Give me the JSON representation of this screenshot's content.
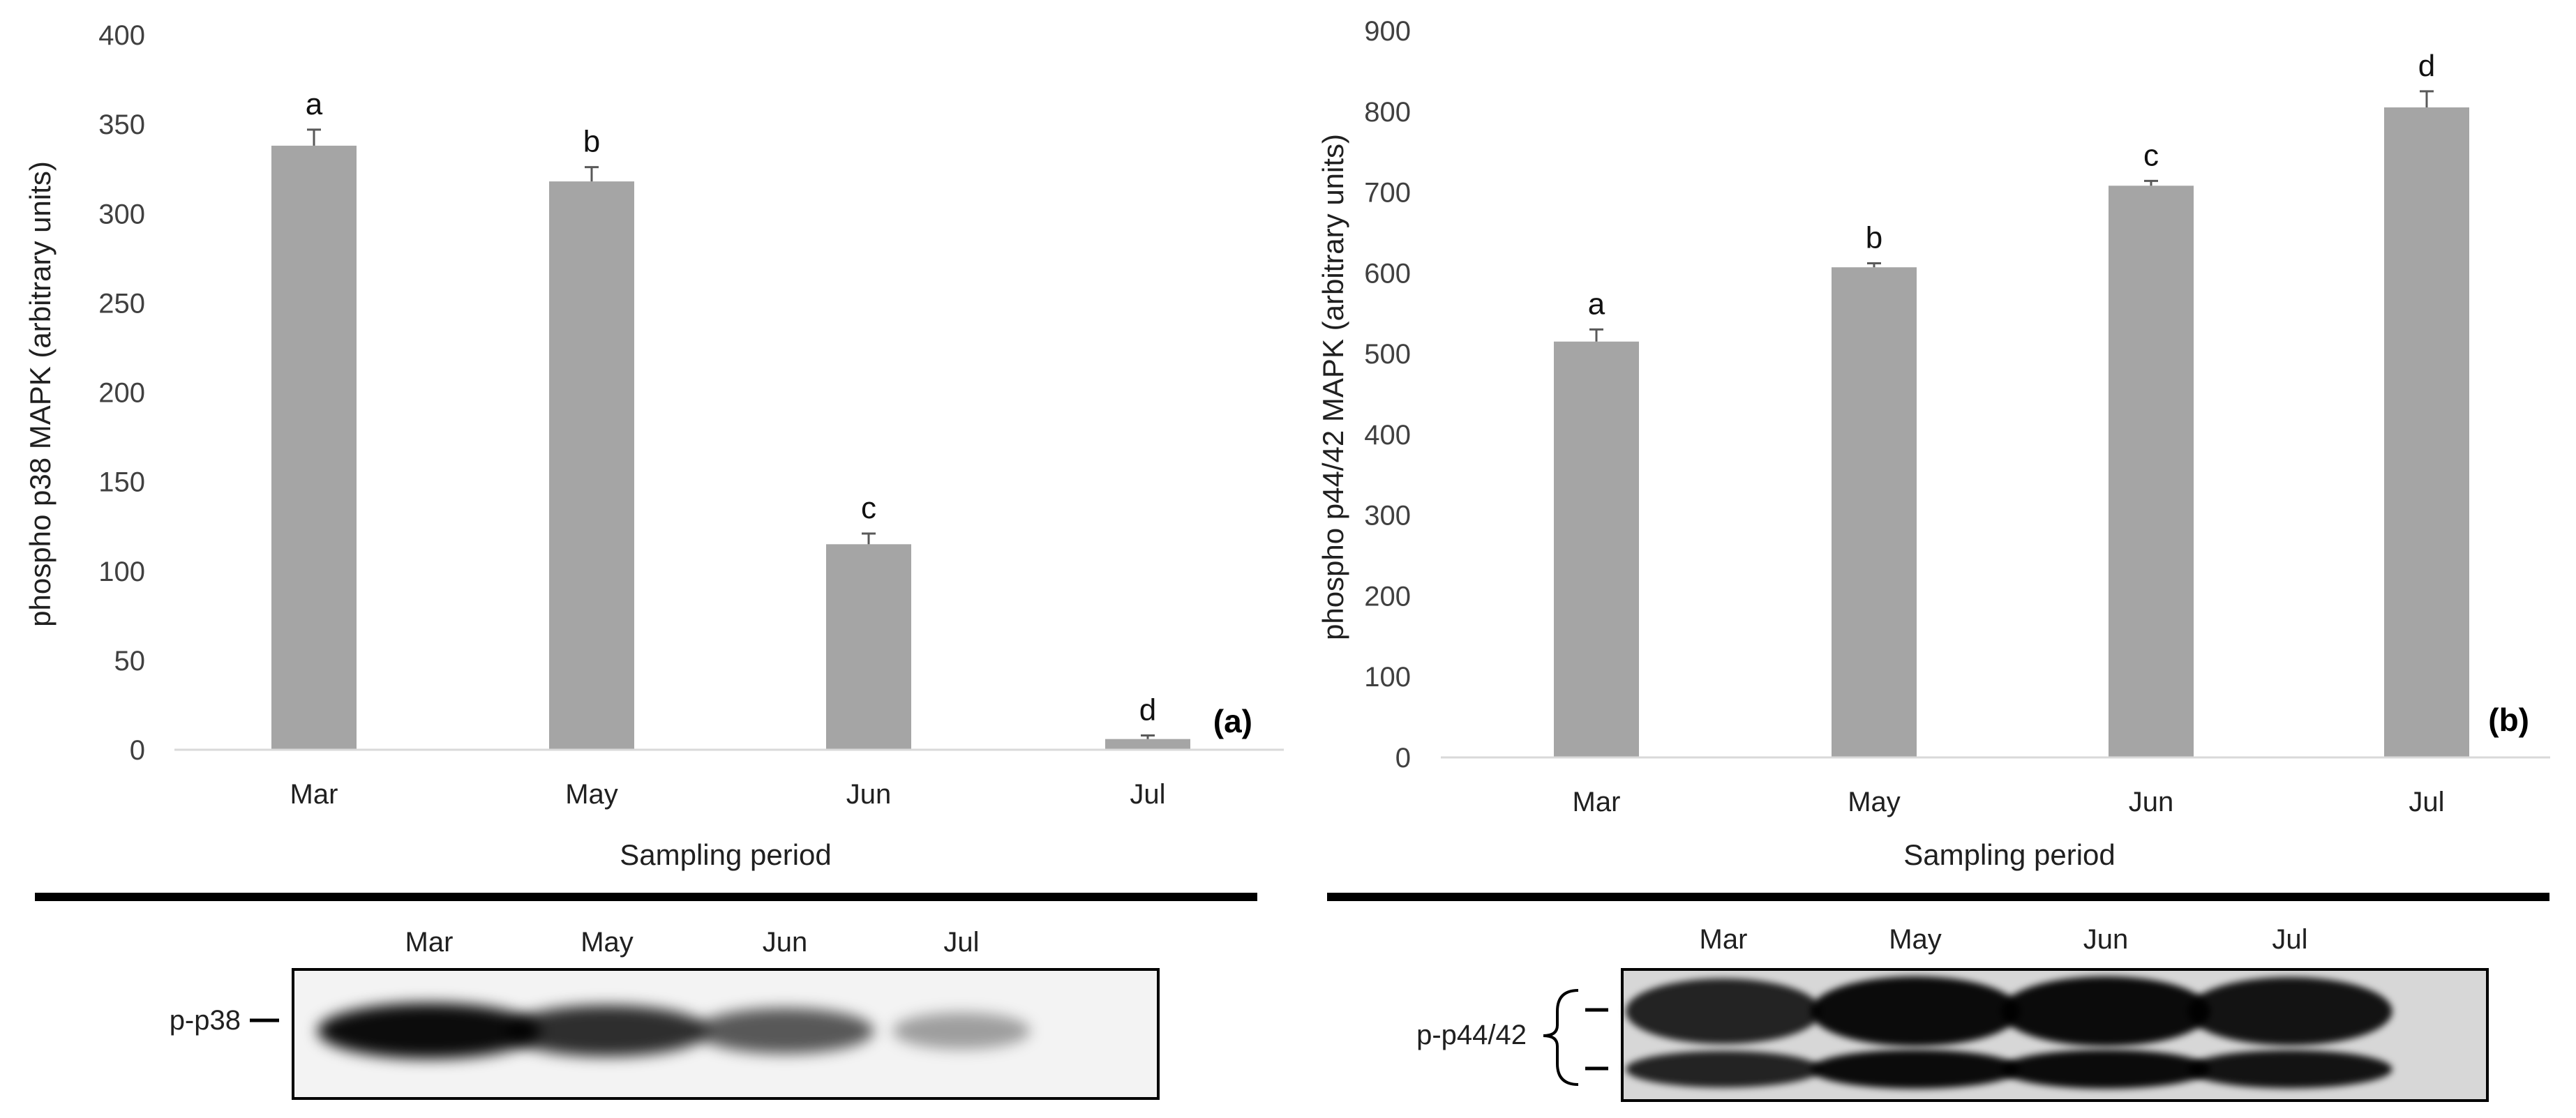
{
  "chart_data": [
    {
      "type": "bar",
      "panel_label": "(a)",
      "categories": [
        "Mar",
        "May",
        "Jun",
        "Jul"
      ],
      "values": [
        338,
        318,
        115,
        6
      ],
      "errors": [
        9,
        8,
        6,
        2
      ],
      "significance": [
        "a",
        "b",
        "c",
        "d"
      ],
      "xlabel": "Sampling period",
      "ylabel": "phospho p38 MAPK (arbitrary units)",
      "ylim": [
        0,
        400
      ],
      "yticks": [
        0,
        50,
        100,
        150,
        200,
        250,
        300,
        350,
        400
      ],
      "bar_color": "#a5a5a5",
      "grid": false,
      "legend": "none"
    },
    {
      "type": "bar",
      "panel_label": "(b)",
      "categories": [
        "Mar",
        "May",
        "Jun",
        "Jul"
      ],
      "values": [
        515,
        607,
        708,
        805
      ],
      "errors": [
        15,
        5,
        6,
        20
      ],
      "significance": [
        "a",
        "b",
        "c",
        "d"
      ],
      "xlabel": "Sampling period",
      "ylabel": "phospho p44/42 MAPK (arbitrary units)",
      "ylim": [
        0,
        900
      ],
      "yticks": [
        0,
        100,
        200,
        300,
        400,
        500,
        600,
        700,
        800,
        900
      ],
      "bar_color": "#a5a5a5",
      "grid": false,
      "legend": "none"
    }
  ],
  "blots": [
    {
      "band_label": "p-p38",
      "lanes": [
        "Mar",
        "May",
        "Jun",
        "Jul"
      ],
      "band_intensity": [
        1.0,
        0.8,
        0.55,
        0.15
      ]
    },
    {
      "band_label": "p-p44/42",
      "lanes": [
        "Mar",
        "May",
        "Jun",
        "Jul"
      ],
      "band_intensity": [
        0.85,
        1.0,
        1.0,
        0.95
      ]
    }
  ]
}
